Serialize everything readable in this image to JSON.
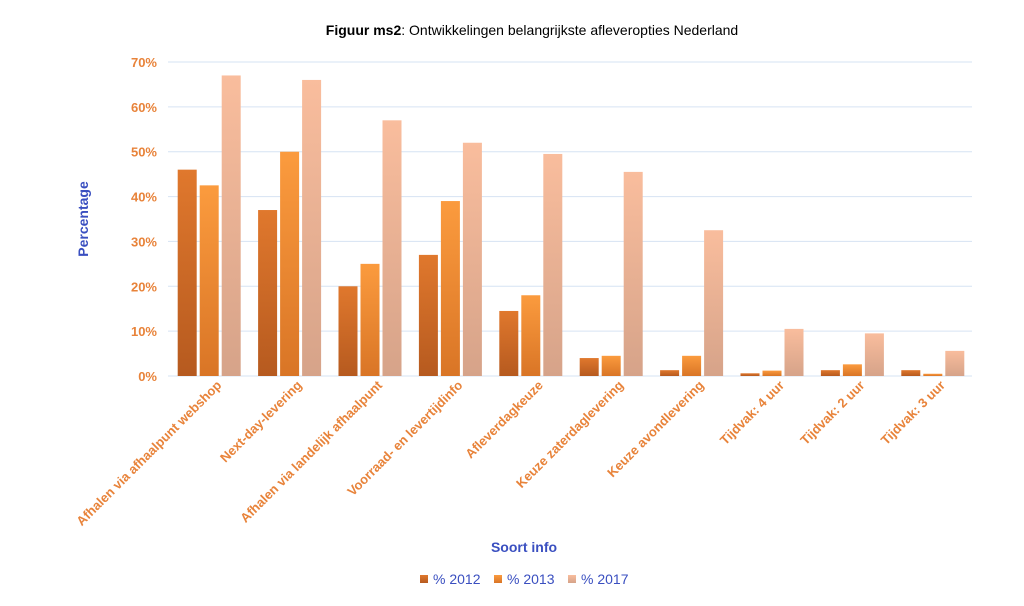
{
  "chart_data": {
    "type": "bar",
    "title_bold": "Figuur ms2",
    "title_rest": ": Ontwikkelingen belangrijkste afleveropties Nederland",
    "xlabel": "Soort info",
    "ylabel": "Percentage",
    "ylim": [
      0,
      70
    ],
    "yticks": [
      "0%",
      "10%",
      "20%",
      "30%",
      "40%",
      "50%",
      "60%",
      "70%"
    ],
    "ytick_values": [
      0,
      10,
      20,
      30,
      40,
      50,
      60,
      70
    ],
    "categories": [
      "Afhalen via afhaalpunt webshop",
      "Next-day-levering",
      "Afhalen via landelijk afhaalpunt",
      "Voorraad- en levertijdinfo",
      "Afleverdagkeuze",
      "Keuze zaterdaglevering",
      "Keuze avondlevering",
      "Tijdvak: 4 uur",
      "Tijdvak: 2 uur",
      "Tijdvak: 3 uur"
    ],
    "series": [
      {
        "name": "% 2012",
        "values": [
          46,
          37,
          20,
          27,
          14.5,
          4,
          1.3,
          0.6,
          1.3,
          1.3
        ]
      },
      {
        "name": "% 2013",
        "values": [
          42.5,
          50,
          25,
          39,
          18,
          4.5,
          4.5,
          1.2,
          2.6,
          0.5
        ]
      },
      {
        "name": "% 2017",
        "values": [
          67,
          66,
          57,
          52,
          49.5,
          45.5,
          32.5,
          10.5,
          9.5,
          5.6
        ]
      }
    ],
    "colors": {
      "series_top": [
        "#e0782d",
        "#fb9b3e",
        "#f9bd9d"
      ],
      "series_bottom": [
        "#b65a1f",
        "#d97526",
        "#d6a389"
      ],
      "tick_text": "#e8833a",
      "axis_title": "#3a4fc0",
      "gridline": "#d6e3f3",
      "legend_text": "#3a4fc0"
    },
    "grid": true,
    "legend_position": "bottom"
  }
}
